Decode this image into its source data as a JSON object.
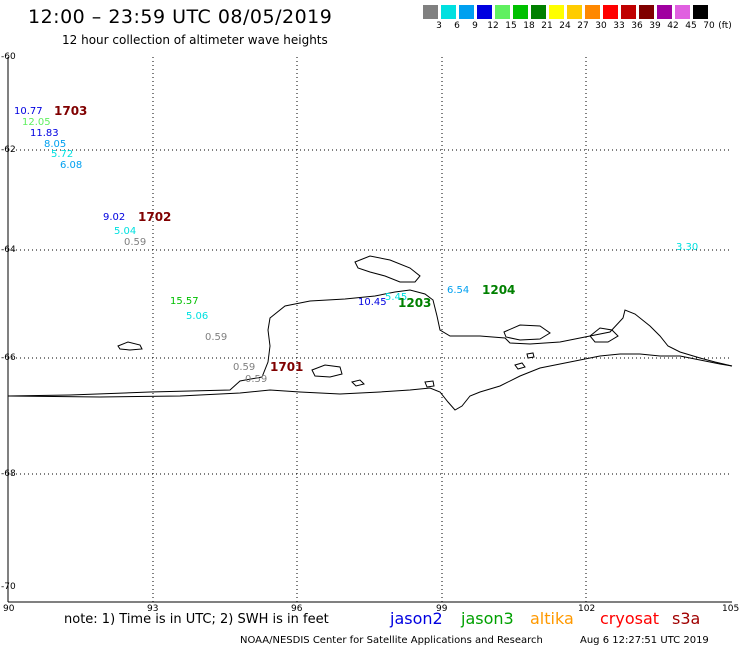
{
  "header": {
    "title": "12:00 – 23:59 UTC 08/05/2019",
    "subtitle": "12 hour collection of altimeter wave heights"
  },
  "legend": {
    "unit": "(ft)",
    "bins": [
      {
        "label": "3",
        "color": "#808080"
      },
      {
        "label": "6",
        "color": "#00e0e0"
      },
      {
        "label": "9",
        "color": "#00a0f0"
      },
      {
        "label": "12",
        "color": "#0000e0"
      },
      {
        "label": "15",
        "color": "#60f060"
      },
      {
        "label": "18",
        "color": "#00c000"
      },
      {
        "label": "21",
        "color": "#008000"
      },
      {
        "label": "24",
        "color": "#ffff00"
      },
      {
        "label": "27",
        "color": "#ffcc00"
      },
      {
        "label": "30",
        "color": "#ff8800"
      },
      {
        "label": "33",
        "color": "#ff0000"
      },
      {
        "label": "36",
        "color": "#c00000"
      },
      {
        "label": "39",
        "color": "#800000"
      },
      {
        "label": "42",
        "color": "#a000a0"
      },
      {
        "label": "45",
        "color": "#e060e0"
      },
      {
        "label": "70",
        "color": "#000000"
      }
    ]
  },
  "axes": {
    "latitudes": [
      "-60",
      "-62",
      "-64",
      "-66",
      "-68",
      "-70"
    ],
    "longitudes": [
      "90",
      "93",
      "96",
      "99",
      "102",
      "105"
    ]
  },
  "observations": [
    {
      "text": "10.77",
      "color": "#0000e0"
    },
    {
      "text": "12.05",
      "color": "#60f060"
    },
    {
      "text": "11.83",
      "color": "#0000e0"
    },
    {
      "text": "8.05",
      "color": "#00a0f0"
    },
    {
      "text": "5.72",
      "color": "#00e0e0"
    },
    {
      "text": "6.08",
      "color": "#00a0f0"
    },
    {
      "text": "9.02",
      "color": "#0000e0"
    },
    {
      "text": "5.04",
      "color": "#00e0e0"
    },
    {
      "text": "0.59",
      "color": "#808080"
    },
    {
      "text": "3.30",
      "color": "#00e0e0"
    },
    {
      "text": "15.57",
      "color": "#00c000"
    },
    {
      "text": "5.06",
      "color": "#00e0e0"
    },
    {
      "text": "0.59",
      "color": "#808080"
    },
    {
      "text": "10.45",
      "color": "#0000e0"
    },
    {
      "text": "5.45",
      "color": "#00e0e0"
    },
    {
      "text": "6.54",
      "color": "#00a0f0"
    },
    {
      "text": "0.59",
      "color": "#808080"
    },
    {
      "text": "0.59",
      "color": "#808080"
    }
  ],
  "passes": [
    {
      "text": "1703",
      "color": "#800000"
    },
    {
      "text": "1702",
      "color": "#800000"
    },
    {
      "text": "1204",
      "color": "#008000"
    },
    {
      "text": "1203",
      "color": "#008000"
    },
    {
      "text": "1701",
      "color": "#800000"
    }
  ],
  "footer": {
    "note": "note:  1) Time is in UTC;  2) SWH is in feet",
    "satellites": [
      {
        "name": "jason2",
        "color": "#0000e0"
      },
      {
        "name": "jason3",
        "color": "#00a000"
      },
      {
        "name": "altika",
        "color": "#ff9900"
      },
      {
        "name": "cryosat",
        "color": "#ff0000"
      },
      {
        "name": "s3a",
        "color": "#a00000"
      }
    ],
    "credit": "NOAA/NESDIS Center for Satellite Applications and Research",
    "timestamp": "Aug  6 12:27:51 UTC 2019"
  }
}
